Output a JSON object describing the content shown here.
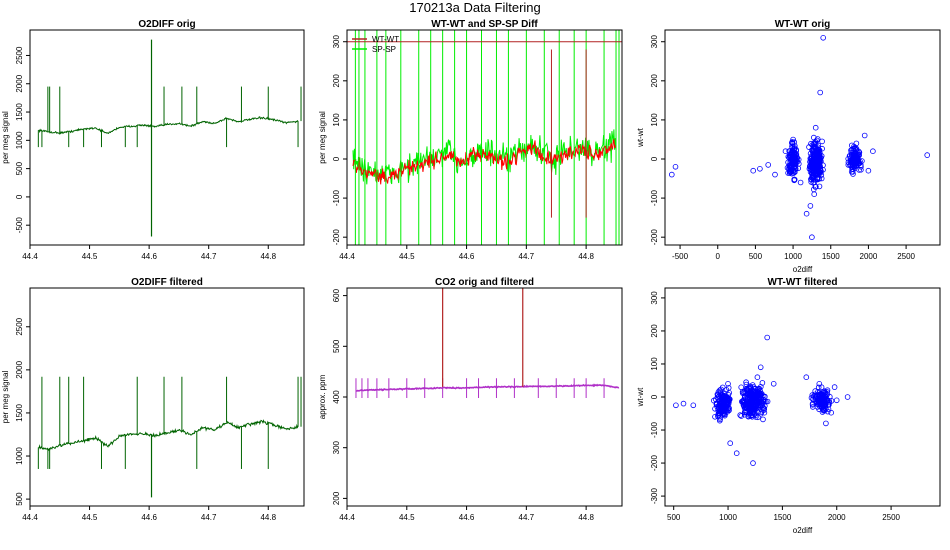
{
  "page": {
    "title": "170213a   Data Filtering"
  },
  "colors": {
    "green": "#006400",
    "red": "#ff0000",
    "lime": "#00ee00",
    "darkred": "#b22222",
    "purple": "#b030c8",
    "blue": "#0000ff",
    "axis": "#000000"
  },
  "chart_data": [
    {
      "id": "o2diff-orig",
      "type": "line",
      "title": "O2DIFF orig",
      "xlabel": "",
      "ylabel": "per meg signal",
      "xlim": [
        44.4,
        44.86
      ],
      "ylim": [
        -850,
        2950
      ],
      "xticks": [
        44.4,
        44.5,
        44.6,
        44.7,
        44.8
      ],
      "xtick_labels": [
        "44.4",
        "44.5",
        "44.6",
        "44.7",
        "44.8"
      ],
      "yticks": [
        -500,
        0,
        500,
        1000,
        1500,
        2000,
        2500
      ],
      "ytick_labels": [
        "-500",
        "0",
        "500",
        "1000",
        "1500",
        "2000",
        "2500"
      ],
      "series": [
        {
          "name": "O2DIFF",
          "color": "#006400",
          "x": [
            44.415,
            44.43,
            44.45,
            44.47,
            44.49,
            44.51,
            44.53,
            44.55,
            44.57,
            44.59,
            44.61,
            44.63,
            44.65,
            44.67,
            44.69,
            44.71,
            44.73,
            44.75,
            44.77,
            44.79,
            44.81,
            44.83,
            44.85
          ],
          "y": [
            1180,
            1150,
            1130,
            1160,
            1200,
            1220,
            1120,
            1230,
            1250,
            1270,
            1240,
            1280,
            1300,
            1250,
            1330,
            1300,
            1390,
            1330,
            1370,
            1400,
            1360,
            1310,
            1340
          ]
        }
      ],
      "spikes": [
        {
          "x": 44.604,
          "ymin": -700,
          "ymax": 2780
        }
      ]
    },
    {
      "id": "wt-sp-diff",
      "type": "line",
      "title": "WT-WT and SP-SP Diff",
      "xlabel": "",
      "ylabel": "per meg signal",
      "xlim": [
        44.4,
        44.86
      ],
      "ylim": [
        -220,
        330
      ],
      "xticks": [
        44.4,
        44.5,
        44.6,
        44.7,
        44.8
      ],
      "xtick_labels": [
        "44.4",
        "44.5",
        "44.6",
        "44.7",
        "44.8"
      ],
      "yticks": [
        -200,
        -100,
        0,
        100,
        200,
        300
      ],
      "ytick_labels": [
        "-200",
        "-100",
        "0",
        "100",
        "200",
        "300"
      ],
      "hline": 300,
      "series": [
        {
          "name": "WT-WT",
          "color": "#ff0000",
          "x": [
            44.41,
            44.43,
            44.45,
            44.47,
            44.49,
            44.51,
            44.53,
            44.55,
            44.57,
            44.59,
            44.61,
            44.63,
            44.65,
            44.67,
            44.69,
            44.71,
            44.73,
            44.75,
            44.77,
            44.79,
            44.81,
            44.83,
            44.85
          ],
          "y": [
            -10,
            -30,
            -40,
            -50,
            -30,
            -20,
            -10,
            0,
            10,
            -10,
            5,
            15,
            0,
            -10,
            20,
            30,
            5,
            -5,
            15,
            25,
            10,
            20,
            40
          ]
        },
        {
          "name": "SP-SP",
          "color": "#00ee00",
          "x": [
            44.41,
            44.43,
            44.45,
            44.47,
            44.49,
            44.51,
            44.53,
            44.55,
            44.57,
            44.59,
            44.61,
            44.63,
            44.65,
            44.67,
            44.69,
            44.71,
            44.73,
            44.75,
            44.77,
            44.79,
            44.81,
            44.83,
            44.85
          ],
          "y": [
            -5,
            -25,
            -35,
            -45,
            -25,
            -15,
            -5,
            5,
            15,
            -5,
            10,
            20,
            5,
            -5,
            25,
            35,
            10,
            0,
            20,
            30,
            15,
            25,
            45
          ]
        }
      ],
      "legend": [
        "WT-WT",
        "SP-SP"
      ]
    },
    {
      "id": "wt-orig",
      "type": "scatter",
      "title": "WT-WT orig",
      "xlabel": "o2diff",
      "ylabel": "wt-wt",
      "xlim": [
        -700,
        2950
      ],
      "ylim": [
        -220,
        330
      ],
      "xticks": [
        -500,
        0,
        500,
        1000,
        1500,
        2000,
        2500
      ],
      "xtick_labels": [
        "-500",
        "0",
        "500",
        "1000",
        "1500",
        "2000",
        "2500"
      ],
      "yticks": [
        -200,
        -100,
        0,
        100,
        200,
        300
      ],
      "ytick_labels": [
        "-200",
        "-100",
        "0",
        "100",
        "200",
        "300"
      ],
      "series": [
        {
          "name": "points",
          "color": "#0000ff",
          "x": [
            -560,
            -610,
            470,
            560,
            670,
            760,
            900,
            960,
            1000,
            1100,
            1180,
            1230,
            1250,
            1280,
            1300,
            1330,
            1360,
            1380,
            1400,
            1780,
            1840,
            1900,
            1950,
            2000,
            2060,
            2780
          ],
          "y": [
            -20,
            -40,
            -30,
            -25,
            -15,
            -40,
            20,
            -30,
            50,
            -60,
            -140,
            -120,
            -200,
            -90,
            80,
            30,
            170,
            -50,
            310,
            -10,
            40,
            -20,
            60,
            -30,
            20,
            10
          ]
        }
      ]
    },
    {
      "id": "o2diff-filt",
      "type": "line",
      "title": "O2DIFF filtered",
      "xlabel": "",
      "ylabel": "per meg signal",
      "xlim": [
        44.4,
        44.86
      ],
      "ylim": [
        420,
        2950
      ],
      "xticks": [
        44.4,
        44.5,
        44.6,
        44.7,
        44.8
      ],
      "xtick_labels": [
        "44.4",
        "44.5",
        "44.6",
        "44.7",
        "44.8"
      ],
      "yticks": [
        500,
        1000,
        1500,
        2000,
        2500
      ],
      "ytick_labels": [
        "500",
        "1000",
        "1500",
        "2000",
        "2500"
      ],
      "series": [
        {
          "name": "O2DIFF",
          "color": "#006400",
          "x": [
            44.415,
            44.43,
            44.45,
            44.47,
            44.49,
            44.51,
            44.53,
            44.55,
            44.57,
            44.59,
            44.61,
            44.63,
            44.65,
            44.67,
            44.69,
            44.71,
            44.73,
            44.75,
            44.77,
            44.79,
            44.81,
            44.83,
            44.85
          ],
          "y": [
            1100,
            1080,
            1120,
            1150,
            1180,
            1210,
            1110,
            1230,
            1260,
            1260,
            1230,
            1270,
            1300,
            1250,
            1330,
            1300,
            1390,
            1330,
            1370,
            1400,
            1360,
            1310,
            1340
          ]
        }
      ],
      "spikes": [
        {
          "x": 44.604,
          "ymin": 520,
          "ymax": 1240
        }
      ]
    },
    {
      "id": "co2",
      "type": "line",
      "title": "CO2 orig and filtered",
      "xlabel": "",
      "ylabel": "approx. ppm",
      "xlim": [
        44.4,
        44.86
      ],
      "ylim": [
        185,
        615
      ],
      "xticks": [
        44.4,
        44.5,
        44.6,
        44.7,
        44.8
      ],
      "xtick_labels": [
        "44.4",
        "44.5",
        "44.6",
        "44.7",
        "44.8"
      ],
      "yticks": [
        200,
        300,
        400,
        500,
        600
      ],
      "ytick_labels": [
        "200",
        "300",
        "400",
        "500",
        "600"
      ],
      "series": [
        {
          "name": "filtered",
          "color": "#b030c8",
          "x": [
            44.415,
            44.44,
            44.47,
            44.5,
            44.53,
            44.56,
            44.59,
            44.62,
            44.65,
            44.68,
            44.71,
            44.74,
            44.77,
            44.8,
            44.83,
            44.855
          ],
          "y": [
            412,
            414,
            415,
            416,
            417,
            418,
            418,
            419,
            420,
            420,
            421,
            421,
            422,
            423,
            423,
            418
          ]
        }
      ],
      "spikes": [
        {
          "x": 44.56,
          "ymin": 420,
          "ymax": 615
        },
        {
          "x": 44.694,
          "ymin": 420,
          "ymax": 615
        }
      ]
    },
    {
      "id": "wt-filt",
      "type": "scatter",
      "title": "WT-WT filtered",
      "xlabel": "o2diff",
      "ylabel": "wt-wt",
      "xlim": [
        420,
        2950
      ],
      "ylim": [
        -330,
        330
      ],
      "xticks": [
        500,
        1000,
        1500,
        2000,
        2500
      ],
      "xtick_labels": [
        "500",
        "1000",
        "1500",
        "2000",
        "2500"
      ],
      "yticks": [
        -300,
        -200,
        -100,
        0,
        100,
        200,
        300
      ],
      "ytick_labels": [
        "-300",
        "-200",
        "-100",
        "0",
        "100",
        "200",
        "300"
      ],
      "series": [
        {
          "name": "points",
          "color": "#0000ff",
          "x": [
            520,
            590,
            680,
            880,
            1000,
            1020,
            1080,
            1230,
            1270,
            1300,
            1330,
            1360,
            1420,
            1720,
            1780,
            1840,
            1900,
            1980,
            2000,
            2100
          ],
          "y": [
            -25,
            -20,
            -25,
            -60,
            40,
            -140,
            -170,
            -200,
            60,
            90,
            -40,
            180,
            40,
            60,
            -30,
            40,
            -80,
            30,
            -10,
            0
          ]
        }
      ]
    }
  ]
}
